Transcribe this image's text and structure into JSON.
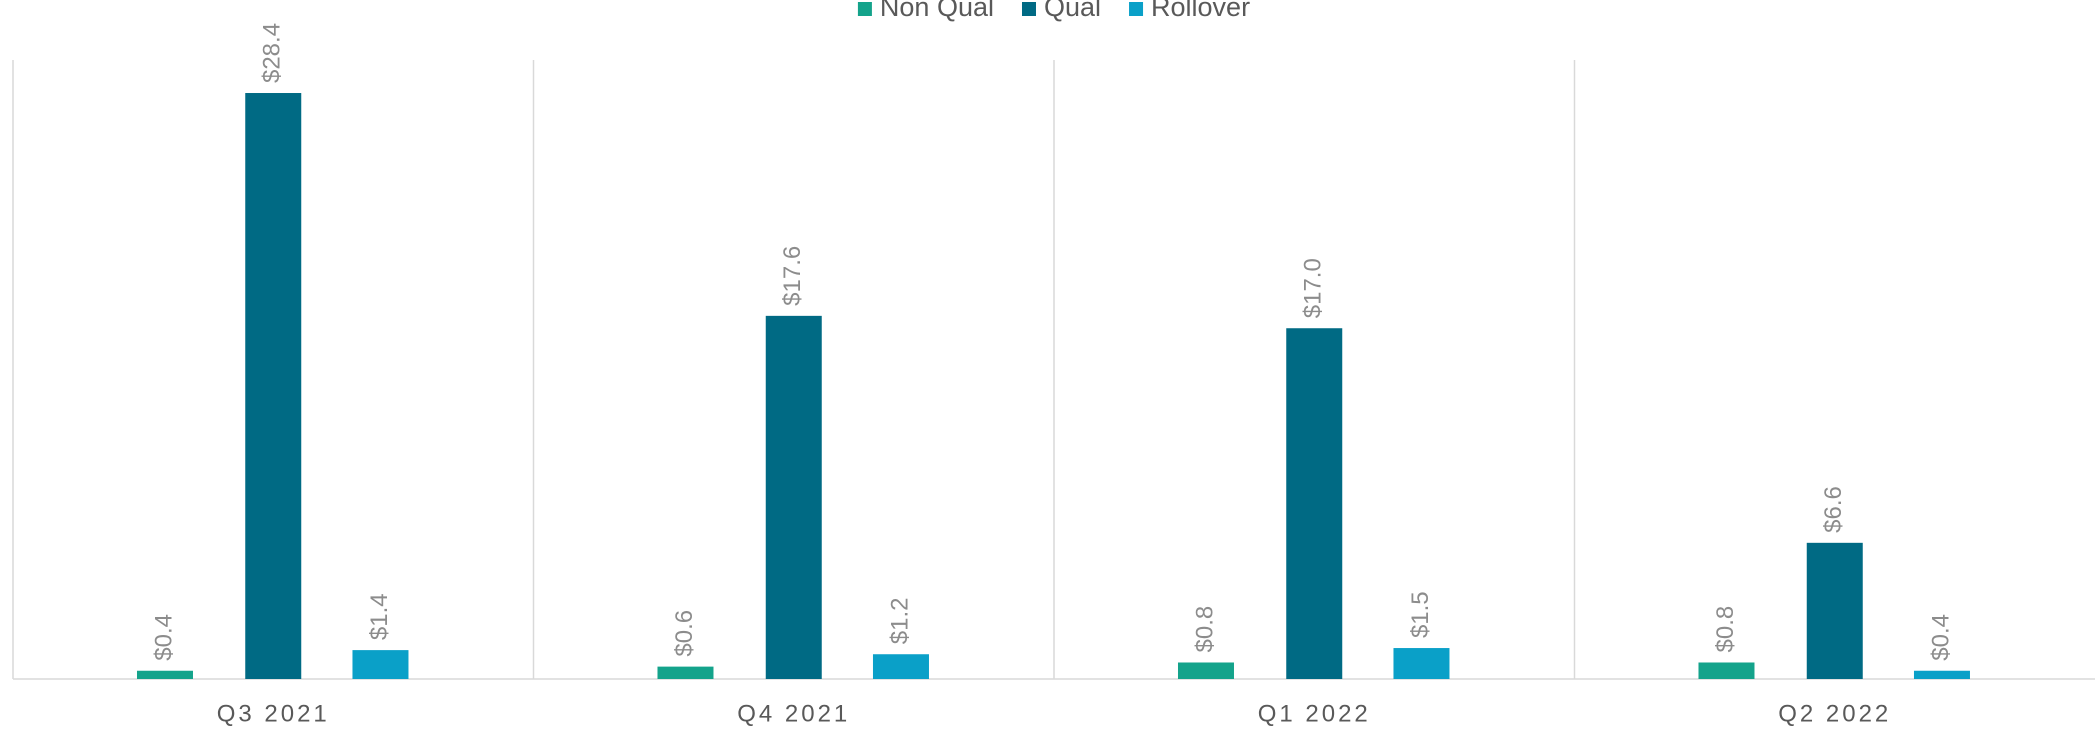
{
  "chart_data": {
    "type": "bar",
    "categories": [
      "Q3 2021",
      "Q4 2021",
      "Q1 2022",
      "Q2 2022"
    ],
    "series": [
      {
        "name": "Non Qual",
        "color": "#14a38b",
        "values": [
          0.4,
          0.6,
          0.8,
          0.8
        ],
        "value_labels": [
          "$0.4",
          "$0.6",
          "$0.8",
          "$0.8"
        ]
      },
      {
        "name": "Qual",
        "color": "#006a84",
        "values": [
          28.4,
          17.6,
          17.0,
          6.6
        ],
        "value_labels": [
          "$28.4",
          "$17.6",
          "$17.0",
          "$6.6"
        ]
      },
      {
        "name": "Rollover",
        "color": "#0aa0c8",
        "values": [
          1.4,
          1.2,
          1.5,
          0.4
        ],
        "value_labels": [
          "$1.4",
          "$1.2",
          "$1.5",
          "$0.4"
        ]
      }
    ],
    "ylim": [
      0,
      30
    ],
    "legend": "top"
  }
}
